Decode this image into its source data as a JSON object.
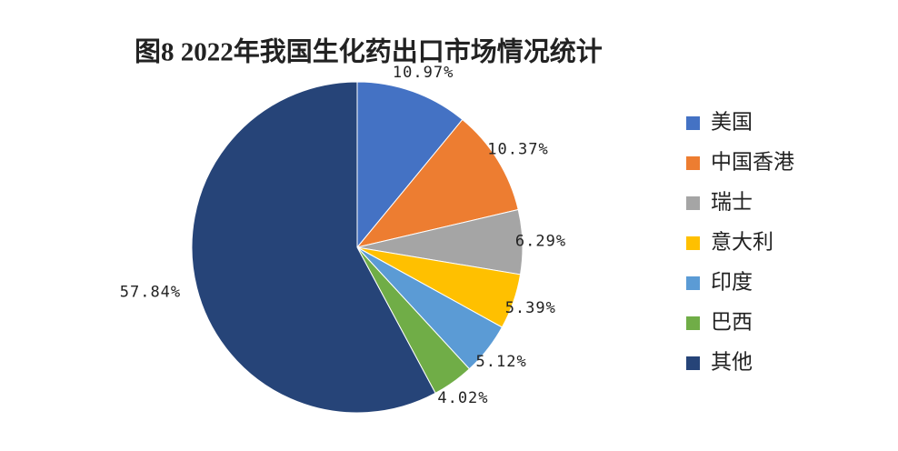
{
  "chart_data": {
    "type": "pie",
    "title": "图8 2022年我国生化药出口市场情况统计",
    "categories": [
      "美国",
      "中国香港",
      "瑞士",
      "意大利",
      "印度",
      "巴西",
      "其他"
    ],
    "values": [
      10.97,
      10.37,
      6.29,
      5.39,
      5.12,
      4.02,
      57.84
    ],
    "value_labels": [
      "10.97%",
      "10.37%",
      "6.29%",
      "5.39%",
      "5.12%",
      "4.02%",
      "57.84%"
    ],
    "colors": [
      "#4472c4",
      "#ed7d31",
      "#a5a5a5",
      "#ffc000",
      "#5b9bd5",
      "#70ad47",
      "#264478"
    ],
    "legend": "right"
  }
}
